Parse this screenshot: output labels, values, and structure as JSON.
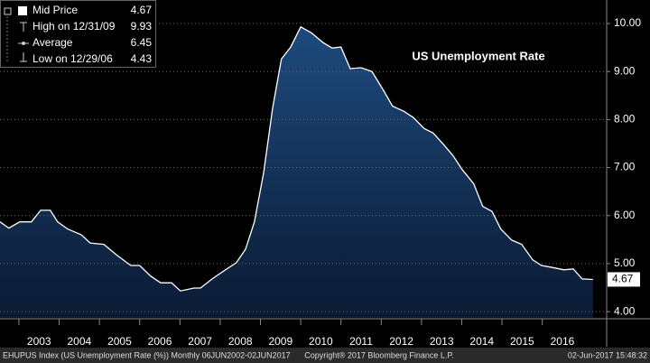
{
  "chart_data": {
    "type": "area",
    "title": "US Unemployment Rate",
    "footer": {
      "left": "EHUPUS Index (US Unemployment Rate (%)) Monthly 06JUN2002-02JUN2017",
      "center": "Copyright® 2017 Bloomberg Finance L.P.",
      "right": "02-Jun-2017 15:48:32"
    },
    "legend_stats": [
      {
        "label": "Mid Price",
        "value": 4.67
      },
      {
        "label": "High on 12/31/09",
        "value": 9.93
      },
      {
        "label": "Average",
        "value": 6.45
      },
      {
        "label": "Low on 12/29/06",
        "value": 4.43
      }
    ],
    "x": [
      2002.53,
      2002.75,
      2003.02,
      2003.31,
      2003.54,
      2003.78,
      2003.96,
      2004.21,
      2004.55,
      2004.77,
      2005.11,
      2005.44,
      2005.78,
      2006.0,
      2006.27,
      2006.52,
      2006.79,
      2007.01,
      2007.35,
      2007.51,
      2007.8,
      2008.13,
      2008.4,
      2008.63,
      2008.85,
      2009.08,
      2009.3,
      2009.52,
      2009.75,
      2010.0,
      2010.26,
      2010.56,
      2010.78,
      2011.0,
      2011.23,
      2011.5,
      2011.77,
      2012.06,
      2012.28,
      2012.57,
      2012.8,
      2013.07,
      2013.29,
      2013.56,
      2013.78,
      2014.01,
      2014.3,
      2014.52,
      2014.75,
      2014.97,
      2015.24,
      2015.49,
      2015.76,
      2015.98,
      2016.25,
      2016.54,
      2016.77,
      2016.99,
      2017.26
    ],
    "series": [
      {
        "name": "Mid Price",
        "color": "#ffffff",
        "values": [
          5.87,
          5.74,
          5.87,
          5.87,
          6.11,
          6.11,
          5.87,
          5.72,
          5.6,
          5.43,
          5.4,
          5.17,
          4.96,
          4.96,
          4.74,
          4.6,
          4.6,
          4.43,
          4.49,
          4.49,
          4.68,
          4.87,
          5.02,
          5.3,
          5.87,
          6.9,
          8.23,
          9.26,
          9.51,
          9.93,
          9.81,
          9.6,
          9.49,
          9.51,
          9.06,
          9.08,
          9.0,
          8.6,
          8.28,
          8.17,
          8.04,
          7.81,
          7.72,
          7.47,
          7.25,
          6.96,
          6.66,
          6.19,
          6.09,
          5.72,
          5.49,
          5.4,
          5.08,
          4.96,
          4.92,
          4.87,
          4.89,
          4.68,
          4.67
        ]
      }
    ],
    "xlim": [
      2002.53,
      2017.6
    ],
    "xticks": [
      {
        "value": 2003.5,
        "label": "2003"
      },
      {
        "value": 2004.5,
        "label": "2004"
      },
      {
        "value": 2005.5,
        "label": "2005"
      },
      {
        "value": 2006.5,
        "label": "2006"
      },
      {
        "value": 2007.5,
        "label": "2007"
      },
      {
        "value": 2008.5,
        "label": "2008"
      },
      {
        "value": 2009.5,
        "label": "2009"
      },
      {
        "value": 2010.5,
        "label": "2010"
      },
      {
        "value": 2011.5,
        "label": "2011"
      },
      {
        "value": 2012.5,
        "label": "2012"
      },
      {
        "value": 2013.5,
        "label": "2013"
      },
      {
        "value": 2014.5,
        "label": "2014"
      },
      {
        "value": 2015.5,
        "label": "2015"
      },
      {
        "value": 2016.5,
        "label": "2016"
      }
    ],
    "ylim": [
      3.87,
      10.49
    ],
    "yticks": [
      {
        "value": 4,
        "label": "4.00"
      },
      {
        "value": 5,
        "label": "5.00"
      },
      {
        "value": 6,
        "label": "6.00"
      },
      {
        "value": 7,
        "label": "7.00"
      },
      {
        "value": 8,
        "label": "8.00"
      },
      {
        "value": 9,
        "label": "9.00"
      },
      {
        "value": 10,
        "label": "10.00"
      }
    ],
    "grid": true
  }
}
